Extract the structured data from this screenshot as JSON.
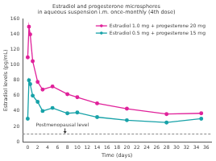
{
  "chart_data": {
    "type": "line",
    "title": "Estradiol and progesterone microspheres\nin aqueous suspension i.m. once-monthly (4th dose)",
    "x_label": "Time (days)",
    "y_label": "Estradiol levels (pg/mL)",
    "series": [
      {
        "name": "Estradiol 1.0 mg + progesterone 20 mg",
        "color": "#e0219a",
        "marker": "circle",
        "line_style": "solid",
        "x": [
          0,
          0.25,
          0.5,
          1,
          2,
          3,
          5,
          8,
          10,
          14,
          20,
          28,
          35
        ],
        "values": [
          110,
          150,
          140,
          105,
          78,
          68,
          72,
          62,
          58,
          50,
          43,
          36,
          37
        ]
      },
      {
        "name": "Estradiol 0.5 mg + progesterone 15 mg",
        "color": "#17a2a8",
        "marker": "circle",
        "line_style": "solid",
        "x": [
          0,
          0.25,
          0.5,
          1,
          2,
          3,
          5,
          8,
          10,
          14,
          20,
          28,
          35
        ],
        "values": [
          30,
          80,
          75,
          60,
          52,
          40,
          44,
          37,
          38,
          32,
          28,
          25,
          30
        ]
      }
    ],
    "annotations": [
      {
        "text": "Postmenopausal level",
        "y": 10
      }
    ],
    "xlim": [
      -1,
      37
    ],
    "xticks": [
      0,
      2,
      4,
      6,
      8,
      10,
      12,
      14,
      16,
      18,
      20,
      22,
      24,
      26,
      28,
      30,
      32,
      34,
      36
    ],
    "ylim": [
      0,
      160
    ],
    "yticks": [
      0,
      20,
      40,
      60,
      80,
      100,
      120,
      140,
      160
    ],
    "grid": false,
    "legend": "upper right"
  }
}
